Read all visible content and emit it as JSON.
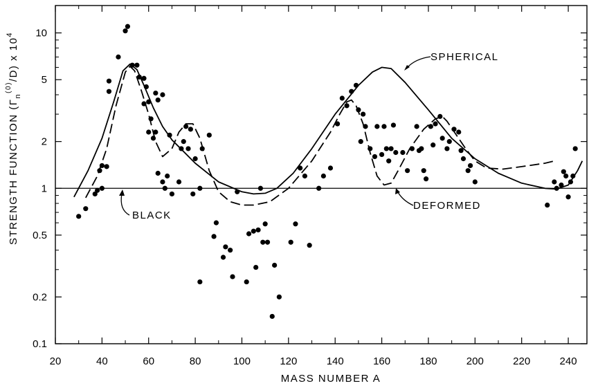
{
  "chart_data": {
    "type": "scatter",
    "title": "",
    "xlabel": "MASS NUMBER A",
    "ylabel": "STRENGTH FUNCTION (Γn(0)/D) x 10⁴",
    "ylabel_parts": {
      "main": "STRENGTH FUNCTION  (",
      "gamma": "Γ",
      "sub": "n",
      "sup0": "(0)",
      "rest": "/D) x 10",
      "sup4": "4"
    },
    "y_scale": "log",
    "xlim": [
      20,
      248
    ],
    "ylim": [
      0.1,
      15
    ],
    "x_ticks": [
      20,
      40,
      60,
      80,
      100,
      120,
      140,
      160,
      180,
      200,
      220,
      240
    ],
    "x_tick_labels": [
      "20",
      "40",
      "60",
      "80",
      "100",
      "120",
      "140",
      "160",
      "180",
      "200",
      "220",
      "240"
    ],
    "y_ticks": [
      0.1,
      0.2,
      0.5,
      1,
      2,
      5,
      10
    ],
    "y_tick_labels": [
      "0.1",
      "0.2",
      "0.5",
      "1",
      "2",
      "5",
      "10"
    ],
    "grid": false,
    "annotations": [
      "SPHERICAL",
      "DEFORMED",
      "BLACK"
    ],
    "series": [
      {
        "kind": "scatter",
        "points": [
          [
            30,
            0.66
          ],
          [
            33,
            0.74
          ],
          [
            37,
            0.92
          ],
          [
            38,
            0.97
          ],
          [
            39,
            1.3
          ],
          [
            40,
            1.0
          ],
          [
            40,
            1.4
          ],
          [
            42,
            1.38
          ],
          [
            43,
            4.9
          ],
          [
            43,
            4.2
          ],
          [
            47,
            7.0
          ],
          [
            50,
            10.3
          ],
          [
            51,
            11.0
          ],
          [
            53,
            6.2
          ],
          [
            55,
            6.2
          ],
          [
            56,
            5.2
          ],
          [
            58,
            5.1
          ],
          [
            58,
            3.5
          ],
          [
            59,
            4.5
          ],
          [
            60,
            3.6
          ],
          [
            60,
            2.3
          ],
          [
            61,
            2.8
          ],
          [
            62,
            2.1
          ],
          [
            63,
            2.3
          ],
          [
            63,
            4.1
          ],
          [
            64,
            1.25
          ],
          [
            64,
            3.7
          ],
          [
            66,
            4.0
          ],
          [
            66,
            1.1
          ],
          [
            67,
            1.0
          ],
          [
            68,
            1.2
          ],
          [
            69,
            2.2
          ],
          [
            70,
            0.92
          ],
          [
            73,
            1.1
          ],
          [
            74,
            1.8
          ],
          [
            75,
            2.0
          ],
          [
            76,
            2.5
          ],
          [
            77,
            1.8
          ],
          [
            78,
            2.4
          ],
          [
            79,
            0.92
          ],
          [
            80,
            1.55
          ],
          [
            82,
            1.0
          ],
          [
            82,
            0.25
          ],
          [
            83,
            1.8
          ],
          [
            86,
            2.2
          ],
          [
            88,
            0.49
          ],
          [
            89,
            0.6
          ],
          [
            92,
            0.36
          ],
          [
            93,
            0.42
          ],
          [
            95,
            0.4
          ],
          [
            96,
            0.27
          ],
          [
            98,
            0.95
          ],
          [
            102,
            0.25
          ],
          [
            103,
            0.51
          ],
          [
            105,
            0.53
          ],
          [
            106,
            0.31
          ],
          [
            107,
            0.54
          ],
          [
            108,
            1.0
          ],
          [
            109,
            0.45
          ],
          [
            110,
            0.59
          ],
          [
            111,
            0.45
          ],
          [
            113,
            0.15
          ],
          [
            114,
            0.32
          ],
          [
            116,
            0.2
          ],
          [
            121,
            0.45
          ],
          [
            123,
            0.59
          ],
          [
            125,
            1.35
          ],
          [
            127,
            1.2
          ],
          [
            129,
            0.43
          ],
          [
            133,
            1.0
          ],
          [
            135,
            1.2
          ],
          [
            138,
            1.35
          ],
          [
            141,
            2.6
          ],
          [
            143,
            3.8
          ],
          [
            145,
            3.4
          ],
          [
            147,
            4.2
          ],
          [
            149,
            4.6
          ],
          [
            150,
            3.2
          ],
          [
            151,
            2.0
          ],
          [
            152,
            3.0
          ],
          [
            153,
            2.5
          ],
          [
            155,
            1.8
          ],
          [
            157,
            1.6
          ],
          [
            158,
            2.5
          ],
          [
            160,
            1.65
          ],
          [
            161,
            2.5
          ],
          [
            162,
            1.8
          ],
          [
            163,
            1.5
          ],
          [
            164,
            1.8
          ],
          [
            165,
            2.55
          ],
          [
            166,
            1.7
          ],
          [
            169,
            1.7
          ],
          [
            171,
            1.3
          ],
          [
            173,
            1.8
          ],
          [
            175,
            2.5
          ],
          [
            176,
            1.75
          ],
          [
            177,
            1.8
          ],
          [
            178,
            1.3
          ],
          [
            179,
            1.15
          ],
          [
            181,
            2.5
          ],
          [
            182,
            1.9
          ],
          [
            183,
            2.6
          ],
          [
            185,
            2.9
          ],
          [
            186,
            2.1
          ],
          [
            188,
            1.8
          ],
          [
            189,
            2.0
          ],
          [
            191,
            2.4
          ],
          [
            193,
            2.3
          ],
          [
            194,
            1.75
          ],
          [
            195,
            1.55
          ],
          [
            197,
            1.3
          ],
          [
            198,
            1.4
          ],
          [
            200,
            1.1
          ],
          [
            231,
            0.78
          ],
          [
            234,
            1.1
          ],
          [
            235,
            1.0
          ],
          [
            237,
            1.05
          ],
          [
            238,
            1.28
          ],
          [
            239,
            1.2
          ],
          [
            240,
            0.88
          ],
          [
            241,
            1.1
          ],
          [
            242,
            1.2
          ],
          [
            243,
            1.8
          ]
        ]
      },
      {
        "kind": "line",
        "style": "solid",
        "points": [
          [
            28,
            0.88
          ],
          [
            34,
            1.3
          ],
          [
            40,
            2.1
          ],
          [
            45,
            3.6
          ],
          [
            49,
            5.7
          ],
          [
            52,
            6.3
          ],
          [
            55,
            5.8
          ],
          [
            58,
            4.6
          ],
          [
            62,
            3.3
          ],
          [
            66,
            2.5
          ],
          [
            70,
            2.05
          ],
          [
            80,
            1.45
          ],
          [
            90,
            1.1
          ],
          [
            100,
            0.95
          ],
          [
            105,
            0.92
          ],
          [
            110,
            0.93
          ],
          [
            115,
            1.0
          ],
          [
            122,
            1.25
          ],
          [
            130,
            1.8
          ],
          [
            140,
            3.0
          ],
          [
            150,
            4.6
          ],
          [
            156,
            5.6
          ],
          [
            160,
            6.0
          ],
          [
            164,
            5.9
          ],
          [
            170,
            4.8
          ],
          [
            180,
            3.2
          ],
          [
            190,
            2.1
          ],
          [
            200,
            1.55
          ],
          [
            210,
            1.25
          ],
          [
            220,
            1.08
          ],
          [
            230,
            1.0
          ],
          [
            235,
            0.99
          ],
          [
            240,
            1.05
          ],
          [
            244,
            1.3
          ],
          [
            246,
            1.5
          ]
        ]
      },
      {
        "kind": "line",
        "style": "dashed",
        "points": [
          [
            33,
            0.87
          ],
          [
            38,
            1.2
          ],
          [
            42,
            1.8
          ],
          [
            46,
            3.4
          ],
          [
            50,
            5.6
          ],
          [
            52,
            6.1
          ],
          [
            54,
            5.7
          ],
          [
            57,
            4.2
          ],
          [
            60,
            3.0
          ],
          [
            63,
            2.0
          ],
          [
            66,
            1.6
          ],
          [
            70,
            1.8
          ],
          [
            73,
            2.3
          ],
          [
            76,
            2.6
          ],
          [
            79,
            2.6
          ],
          [
            82,
            2.1
          ],
          [
            86,
            1.3
          ],
          [
            90,
            0.95
          ],
          [
            95,
            0.82
          ],
          [
            100,
            0.78
          ],
          [
            105,
            0.78
          ],
          [
            112,
            0.82
          ],
          [
            120,
            1.0
          ],
          [
            130,
            1.5
          ],
          [
            138,
            2.3
          ],
          [
            142,
            3.0
          ],
          [
            145,
            3.6
          ],
          [
            147,
            3.7
          ],
          [
            149,
            3.4
          ],
          [
            152,
            2.6
          ],
          [
            155,
            1.7
          ],
          [
            158,
            1.2
          ],
          [
            161,
            1.05
          ],
          [
            164,
            1.08
          ],
          [
            167,
            1.3
          ],
          [
            172,
            1.8
          ],
          [
            178,
            2.4
          ],
          [
            183,
            2.8
          ],
          [
            186,
            2.9
          ],
          [
            188,
            2.7
          ],
          [
            192,
            2.2
          ],
          [
            196,
            1.8
          ],
          [
            200,
            1.5
          ],
          [
            205,
            1.35
          ],
          [
            212,
            1.33
          ],
          [
            220,
            1.38
          ],
          [
            230,
            1.45
          ],
          [
            234,
            1.5
          ]
        ]
      },
      {
        "kind": "reference-line",
        "style": "solid",
        "y": 1.0
      }
    ]
  }
}
